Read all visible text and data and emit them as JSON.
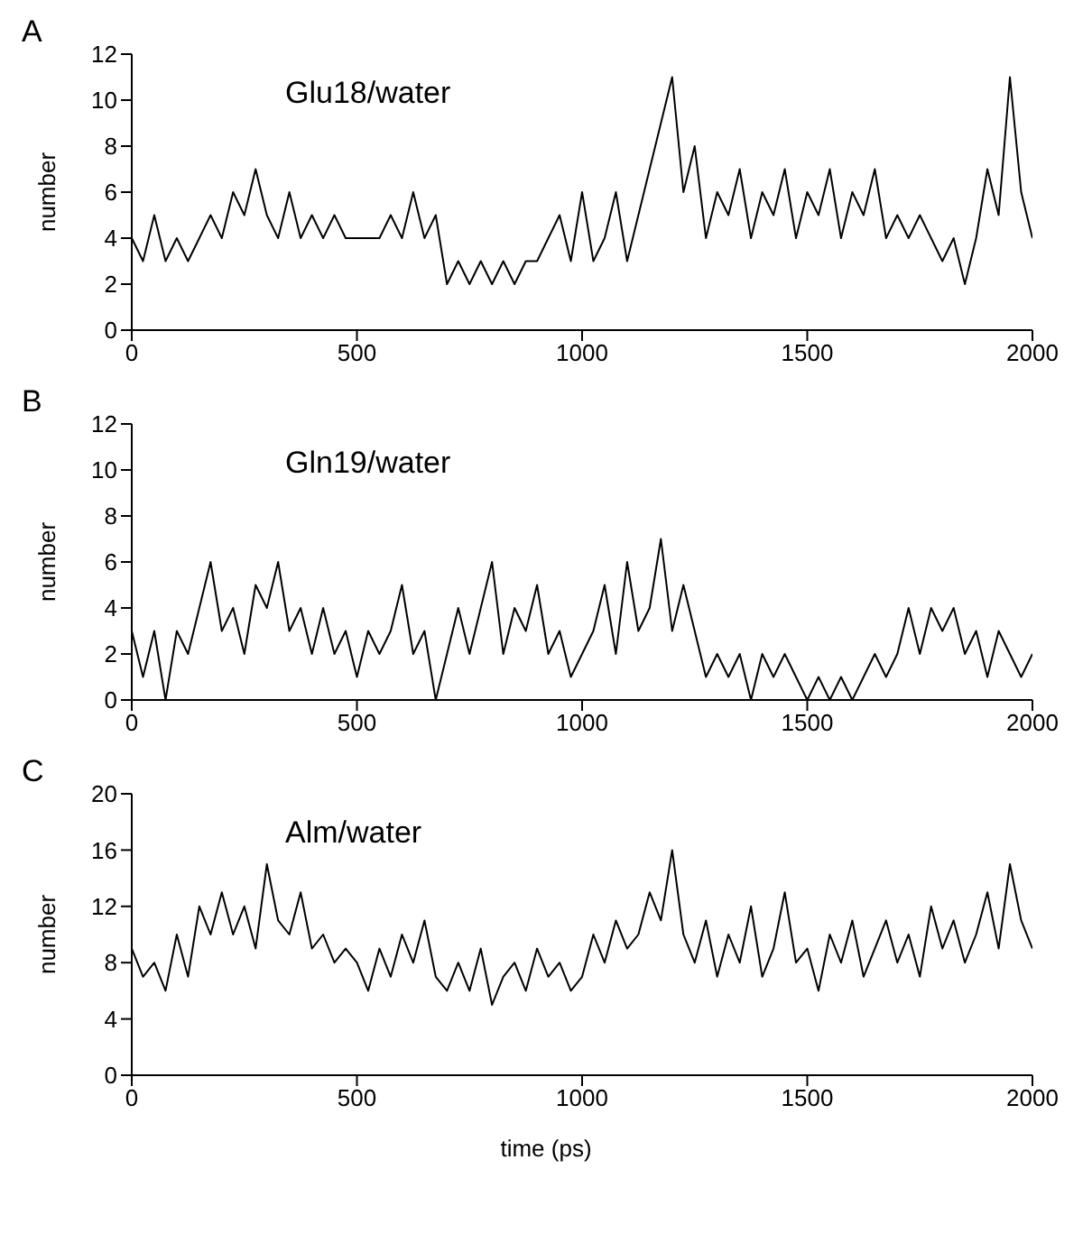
{
  "chart_data": [
    {
      "type": "line",
      "title": "A",
      "annotations": [
        "Glu18/water"
      ],
      "ylabel": "number",
      "xlim": [
        0,
        2000
      ],
      "xticks": [
        0,
        500,
        1000,
        1500,
        2000
      ],
      "ylim": [
        0,
        12
      ],
      "yticks": [
        0,
        2,
        4,
        6,
        8,
        10,
        12
      ],
      "x": [
        0,
        25,
        50,
        75,
        100,
        125,
        150,
        175,
        200,
        225,
        250,
        275,
        300,
        325,
        350,
        375,
        400,
        425,
        450,
        475,
        500,
        525,
        550,
        575,
        600,
        625,
        650,
        675,
        700,
        725,
        750,
        775,
        800,
        825,
        850,
        875,
        900,
        925,
        950,
        975,
        1000,
        1025,
        1050,
        1075,
        1100,
        1125,
        1150,
        1175,
        1200,
        1225,
        1250,
        1275,
        1300,
        1325,
        1350,
        1375,
        1400,
        1425,
        1450,
        1475,
        1500,
        1525,
        1550,
        1575,
        1600,
        1625,
        1650,
        1675,
        1700,
        1725,
        1750,
        1775,
        1800,
        1825,
        1850,
        1875,
        1900,
        1925,
        1950,
        1975,
        2000
      ],
      "series": [
        {
          "color": "#000000",
          "values": [
            4,
            3,
            5,
            3,
            4,
            3,
            4,
            5,
            4,
            6,
            5,
            7,
            5,
            4,
            6,
            4,
            5,
            4,
            5,
            4,
            4,
            4,
            4,
            5,
            4,
            6,
            4,
            5,
            2,
            3,
            2,
            3,
            2,
            3,
            2,
            3,
            3,
            4,
            5,
            3,
            6,
            3,
            4,
            6,
            3,
            5,
            7,
            9,
            11,
            6,
            8,
            4,
            6,
            5,
            7,
            4,
            6,
            5,
            7,
            4,
            6,
            5,
            7,
            4,
            6,
            5,
            7,
            4,
            5,
            4,
            5,
            4,
            3,
            4,
            2,
            4,
            7,
            5,
            11,
            6,
            4
          ]
        }
      ]
    },
    {
      "type": "line",
      "title": "B",
      "annotations": [
        "Gln19/water"
      ],
      "ylabel": "number",
      "xlim": [
        0,
        2000
      ],
      "xticks": [
        0,
        500,
        1000,
        1500,
        2000
      ],
      "ylim": [
        0,
        12
      ],
      "yticks": [
        0,
        2,
        4,
        6,
        8,
        10,
        12
      ],
      "x": [
        0,
        25,
        50,
        75,
        100,
        125,
        150,
        175,
        200,
        225,
        250,
        275,
        300,
        325,
        350,
        375,
        400,
        425,
        450,
        475,
        500,
        525,
        550,
        575,
        600,
        625,
        650,
        675,
        700,
        725,
        750,
        775,
        800,
        825,
        850,
        875,
        900,
        925,
        950,
        975,
        1000,
        1025,
        1050,
        1075,
        1100,
        1125,
        1150,
        1175,
        1200,
        1225,
        1250,
        1275,
        1300,
        1325,
        1350,
        1375,
        1400,
        1425,
        1450,
        1475,
        1500,
        1525,
        1550,
        1575,
        1600,
        1625,
        1650,
        1675,
        1700,
        1725,
        1750,
        1775,
        1800,
        1825,
        1850,
        1875,
        1900,
        1925,
        1950,
        1975,
        2000
      ],
      "series": [
        {
          "color": "#000000",
          "values": [
            3,
            1,
            3,
            0,
            3,
            2,
            4,
            6,
            3,
            4,
            2,
            5,
            4,
            6,
            3,
            4,
            2,
            4,
            2,
            3,
            1,
            3,
            2,
            3,
            5,
            2,
            3,
            0,
            2,
            4,
            2,
            4,
            6,
            2,
            4,
            3,
            5,
            2,
            3,
            1,
            2,
            3,
            5,
            2,
            6,
            3,
            4,
            7,
            3,
            5,
            3,
            1,
            2,
            1,
            2,
            0,
            2,
            1,
            2,
            1,
            0,
            1,
            0,
            1,
            0,
            1,
            2,
            1,
            2,
            4,
            2,
            4,
            3,
            4,
            2,
            3,
            1,
            3,
            2,
            1,
            2
          ]
        }
      ]
    },
    {
      "type": "line",
      "title": "C",
      "annotations": [
        "Alm/water"
      ],
      "ylabel": "number",
      "xlabel": "time (ps)",
      "xlim": [
        0,
        2000
      ],
      "xticks": [
        0,
        500,
        1000,
        1500,
        2000
      ],
      "ylim": [
        0,
        20
      ],
      "yticks": [
        0,
        4,
        8,
        12,
        16,
        20
      ],
      "x": [
        0,
        25,
        50,
        75,
        100,
        125,
        150,
        175,
        200,
        225,
        250,
        275,
        300,
        325,
        350,
        375,
        400,
        425,
        450,
        475,
        500,
        525,
        550,
        575,
        600,
        625,
        650,
        675,
        700,
        725,
        750,
        775,
        800,
        825,
        850,
        875,
        900,
        925,
        950,
        975,
        1000,
        1025,
        1050,
        1075,
        1100,
        1125,
        1150,
        1175,
        1200,
        1225,
        1250,
        1275,
        1300,
        1325,
        1350,
        1375,
        1400,
        1425,
        1450,
        1475,
        1500,
        1525,
        1550,
        1575,
        1600,
        1625,
        1650,
        1675,
        1700,
        1725,
        1750,
        1775,
        1800,
        1825,
        1850,
        1875,
        1900,
        1925,
        1950,
        1975,
        2000
      ],
      "series": [
        {
          "color": "#000000",
          "values": [
            9,
            7,
            8,
            6,
            10,
            7,
            12,
            10,
            13,
            10,
            12,
            9,
            15,
            11,
            10,
            13,
            9,
            10,
            8,
            9,
            8,
            6,
            9,
            7,
            10,
            8,
            11,
            7,
            6,
            8,
            6,
            9,
            5,
            7,
            8,
            6,
            9,
            7,
            8,
            6,
            7,
            10,
            8,
            11,
            9,
            10,
            13,
            11,
            16,
            10,
            8,
            11,
            7,
            10,
            8,
            12,
            7,
            9,
            13,
            8,
            9,
            6,
            10,
            8,
            11,
            7,
            9,
            11,
            8,
            10,
            7,
            12,
            9,
            11,
            8,
            10,
            13,
            9,
            15,
            11,
            9
          ]
        }
      ]
    }
  ]
}
